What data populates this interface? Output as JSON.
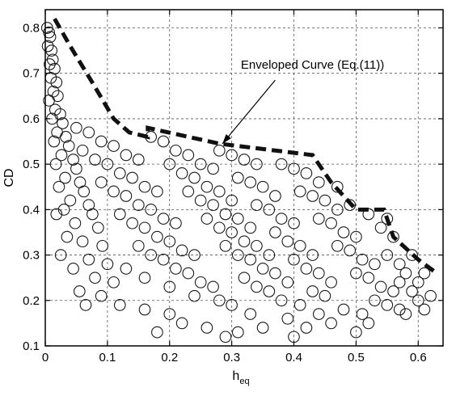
{
  "chart_data": {
    "type": "scatter",
    "xlabel": "h",
    "xlabel_sub": "eq",
    "ylabel": "CD",
    "xlim": [
      0,
      0.64
    ],
    "ylim": [
      0.1,
      0.84
    ],
    "xticks": [
      0,
      0.1,
      0.2,
      0.3,
      0.4,
      0.5,
      0.6
    ],
    "xtick_labels": [
      "0",
      "0.1",
      "0.2",
      "0.3",
      "0.4",
      "0.5",
      "0.6"
    ],
    "yticks": [
      0.1,
      0.2,
      0.3,
      0.4,
      0.5,
      0.6,
      0.7,
      0.8
    ],
    "ytick_labels": [
      "0.1",
      "0.2",
      "0.3",
      "0.4",
      "0.5",
      "0.6",
      "0.7",
      "0.8"
    ],
    "grid": true,
    "marker": "open-circle",
    "series": [
      {
        "values": [
          [
            0.003,
            0.8
          ],
          [
            0.006,
            0.79
          ],
          [
            0.008,
            0.78
          ],
          [
            0.004,
            0.76
          ],
          [
            0.01,
            0.75
          ],
          [
            0.012,
            0.73
          ],
          [
            0.007,
            0.72
          ],
          [
            0.015,
            0.71
          ],
          [
            0.009,
            0.69
          ],
          [
            0.018,
            0.68
          ],
          [
            0.013,
            0.66
          ],
          [
            0.02,
            0.65
          ],
          [
            0.006,
            0.64
          ],
          [
            0.016,
            0.62
          ],
          [
            0.024,
            0.61
          ],
          [
            0.011,
            0.6
          ],
          [
            0.028,
            0.59
          ],
          [
            0.019,
            0.57
          ],
          [
            0.033,
            0.56
          ],
          [
            0.014,
            0.55
          ],
          [
            0.038,
            0.54
          ],
          [
            0.026,
            0.52
          ],
          [
            0.045,
            0.51
          ],
          [
            0.017,
            0.5
          ],
          [
            0.05,
            0.49
          ],
          [
            0.032,
            0.47
          ],
          [
            0.056,
            0.46
          ],
          [
            0.022,
            0.45
          ],
          [
            0.062,
            0.44
          ],
          [
            0.04,
            0.42
          ],
          [
            0.07,
            0.41
          ],
          [
            0.03,
            0.4
          ],
          [
            0.076,
            0.39
          ],
          [
            0.048,
            0.37
          ],
          [
            0.085,
            0.36
          ],
          [
            0.018,
            0.39
          ],
          [
            0.035,
            0.34
          ],
          [
            0.06,
            0.33
          ],
          [
            0.092,
            0.32
          ],
          [
            0.025,
            0.3
          ],
          [
            0.07,
            0.29
          ],
          [
            0.045,
            0.27
          ],
          [
            0.1,
            0.28
          ],
          [
            0.08,
            0.25
          ],
          [
            0.055,
            0.22
          ],
          [
            0.11,
            0.24
          ],
          [
            0.09,
            0.21
          ],
          [
            0.065,
            0.19
          ],
          [
            0.05,
            0.58
          ],
          [
            0.07,
            0.57
          ],
          [
            0.09,
            0.55
          ],
          [
            0.11,
            0.54
          ],
          [
            0.13,
            0.52
          ],
          [
            0.15,
            0.51
          ],
          [
            0.06,
            0.53
          ],
          [
            0.08,
            0.51
          ],
          [
            0.1,
            0.5
          ],
          [
            0.12,
            0.48
          ],
          [
            0.14,
            0.47
          ],
          [
            0.16,
            0.45
          ],
          [
            0.18,
            0.44
          ],
          [
            0.09,
            0.46
          ],
          [
            0.11,
            0.44
          ],
          [
            0.13,
            0.43
          ],
          [
            0.15,
            0.41
          ],
          [
            0.17,
            0.4
          ],
          [
            0.19,
            0.38
          ],
          [
            0.21,
            0.37
          ],
          [
            0.12,
            0.39
          ],
          [
            0.14,
            0.37
          ],
          [
            0.16,
            0.36
          ],
          [
            0.18,
            0.34
          ],
          [
            0.2,
            0.33
          ],
          [
            0.22,
            0.31
          ],
          [
            0.24,
            0.3
          ],
          [
            0.15,
            0.32
          ],
          [
            0.17,
            0.3
          ],
          [
            0.19,
            0.29
          ],
          [
            0.21,
            0.27
          ],
          [
            0.23,
            0.26
          ],
          [
            0.25,
            0.24
          ],
          [
            0.27,
            0.23
          ],
          [
            0.13,
            0.27
          ],
          [
            0.16,
            0.25
          ],
          [
            0.2,
            0.23
          ],
          [
            0.24,
            0.21
          ],
          [
            0.28,
            0.2
          ],
          [
            0.12,
            0.19
          ],
          [
            0.16,
            0.18
          ],
          [
            0.2,
            0.17
          ],
          [
            0.18,
            0.13
          ],
          [
            0.22,
            0.15
          ],
          [
            0.26,
            0.14
          ],
          [
            0.17,
            0.56
          ],
          [
            0.19,
            0.55
          ],
          [
            0.21,
            0.53
          ],
          [
            0.23,
            0.52
          ],
          [
            0.25,
            0.5
          ],
          [
            0.27,
            0.49
          ],
          [
            0.2,
            0.5
          ],
          [
            0.22,
            0.48
          ],
          [
            0.24,
            0.47
          ],
          [
            0.26,
            0.45
          ],
          [
            0.28,
            0.44
          ],
          [
            0.3,
            0.42
          ],
          [
            0.23,
            0.44
          ],
          [
            0.25,
            0.42
          ],
          [
            0.27,
            0.41
          ],
          [
            0.29,
            0.39
          ],
          [
            0.31,
            0.38
          ],
          [
            0.33,
            0.36
          ],
          [
            0.26,
            0.38
          ],
          [
            0.28,
            0.36
          ],
          [
            0.3,
            0.35
          ],
          [
            0.32,
            0.33
          ],
          [
            0.34,
            0.32
          ],
          [
            0.36,
            0.3
          ],
          [
            0.29,
            0.32
          ],
          [
            0.31,
            0.3
          ],
          [
            0.33,
            0.29
          ],
          [
            0.35,
            0.27
          ],
          [
            0.37,
            0.26
          ],
          [
            0.39,
            0.24
          ],
          [
            0.32,
            0.25
          ],
          [
            0.34,
            0.23
          ],
          [
            0.36,
            0.22
          ],
          [
            0.38,
            0.2
          ],
          [
            0.3,
            0.19
          ],
          [
            0.33,
            0.17
          ],
          [
            0.31,
            0.13
          ],
          [
            0.29,
            0.12
          ],
          [
            0.35,
            0.14
          ],
          [
            0.39,
            0.16
          ],
          [
            0.28,
            0.53
          ],
          [
            0.3,
            0.52
          ],
          [
            0.32,
            0.51
          ],
          [
            0.34,
            0.5
          ],
          [
            0.31,
            0.47
          ],
          [
            0.33,
            0.46
          ],
          [
            0.35,
            0.45
          ],
          [
            0.37,
            0.43
          ],
          [
            0.34,
            0.41
          ],
          [
            0.36,
            0.4
          ],
          [
            0.38,
            0.38
          ],
          [
            0.4,
            0.37
          ],
          [
            0.37,
            0.35
          ],
          [
            0.39,
            0.33
          ],
          [
            0.41,
            0.32
          ],
          [
            0.43,
            0.3
          ],
          [
            0.4,
            0.29
          ],
          [
            0.42,
            0.27
          ],
          [
            0.44,
            0.26
          ],
          [
            0.46,
            0.24
          ],
          [
            0.43,
            0.22
          ],
          [
            0.45,
            0.21
          ],
          [
            0.41,
            0.19
          ],
          [
            0.44,
            0.17
          ],
          [
            0.42,
            0.14
          ],
          [
            0.4,
            0.12
          ],
          [
            0.46,
            0.15
          ],
          [
            0.48,
            0.18
          ],
          [
            0.38,
            0.5
          ],
          [
            0.4,
            0.49
          ],
          [
            0.42,
            0.48
          ],
          [
            0.44,
            0.46
          ],
          [
            0.41,
            0.44
          ],
          [
            0.43,
            0.43
          ],
          [
            0.45,
            0.42
          ],
          [
            0.47,
            0.4
          ],
          [
            0.44,
            0.38
          ],
          [
            0.46,
            0.37
          ],
          [
            0.48,
            0.35
          ],
          [
            0.5,
            0.34
          ],
          [
            0.47,
            0.32
          ],
          [
            0.49,
            0.31
          ],
          [
            0.51,
            0.29
          ],
          [
            0.53,
            0.28
          ],
          [
            0.5,
            0.26
          ],
          [
            0.52,
            0.25
          ],
          [
            0.54,
            0.23
          ],
          [
            0.56,
            0.22
          ],
          [
            0.53,
            0.2
          ],
          [
            0.55,
            0.19
          ],
          [
            0.51,
            0.17
          ],
          [
            0.57,
            0.18
          ],
          [
            0.5,
            0.13
          ],
          [
            0.52,
            0.15
          ],
          [
            0.47,
            0.45
          ],
          [
            0.49,
            0.41
          ],
          [
            0.52,
            0.39
          ],
          [
            0.55,
            0.38
          ],
          [
            0.54,
            0.36
          ],
          [
            0.56,
            0.34
          ],
          [
            0.55,
            0.3
          ],
          [
            0.57,
            0.28
          ],
          [
            0.58,
            0.26
          ],
          [
            0.57,
            0.24
          ],
          [
            0.59,
            0.22
          ],
          [
            0.6,
            0.2
          ],
          [
            0.61,
            0.18
          ],
          [
            0.58,
            0.17
          ],
          [
            0.6,
            0.24
          ],
          [
            0.59,
            0.3
          ],
          [
            0.62,
            0.21
          ],
          [
            0.61,
            0.26
          ]
        ]
      }
    ],
    "envelope": {
      "style": "dashed",
      "x": [
        0.015,
        0.04,
        0.08,
        0.11,
        0.135,
        0.165,
        0.165,
        0.28,
        0.43,
        0.46,
        0.5,
        0.545,
        0.56,
        0.6,
        0.63
      ],
      "y": [
        0.82,
        0.76,
        0.67,
        0.6,
        0.57,
        0.56,
        0.58,
        0.545,
        0.52,
        0.46,
        0.4,
        0.4,
        0.34,
        0.29,
        0.26
      ]
    },
    "annotation": {
      "text": "Enveloped Curve (Eq.(11))",
      "text_at": [
        0.43,
        0.71
      ],
      "arrow_from": [
        0.37,
        0.685
      ],
      "arrow_to": [
        0.285,
        0.545
      ]
    }
  }
}
